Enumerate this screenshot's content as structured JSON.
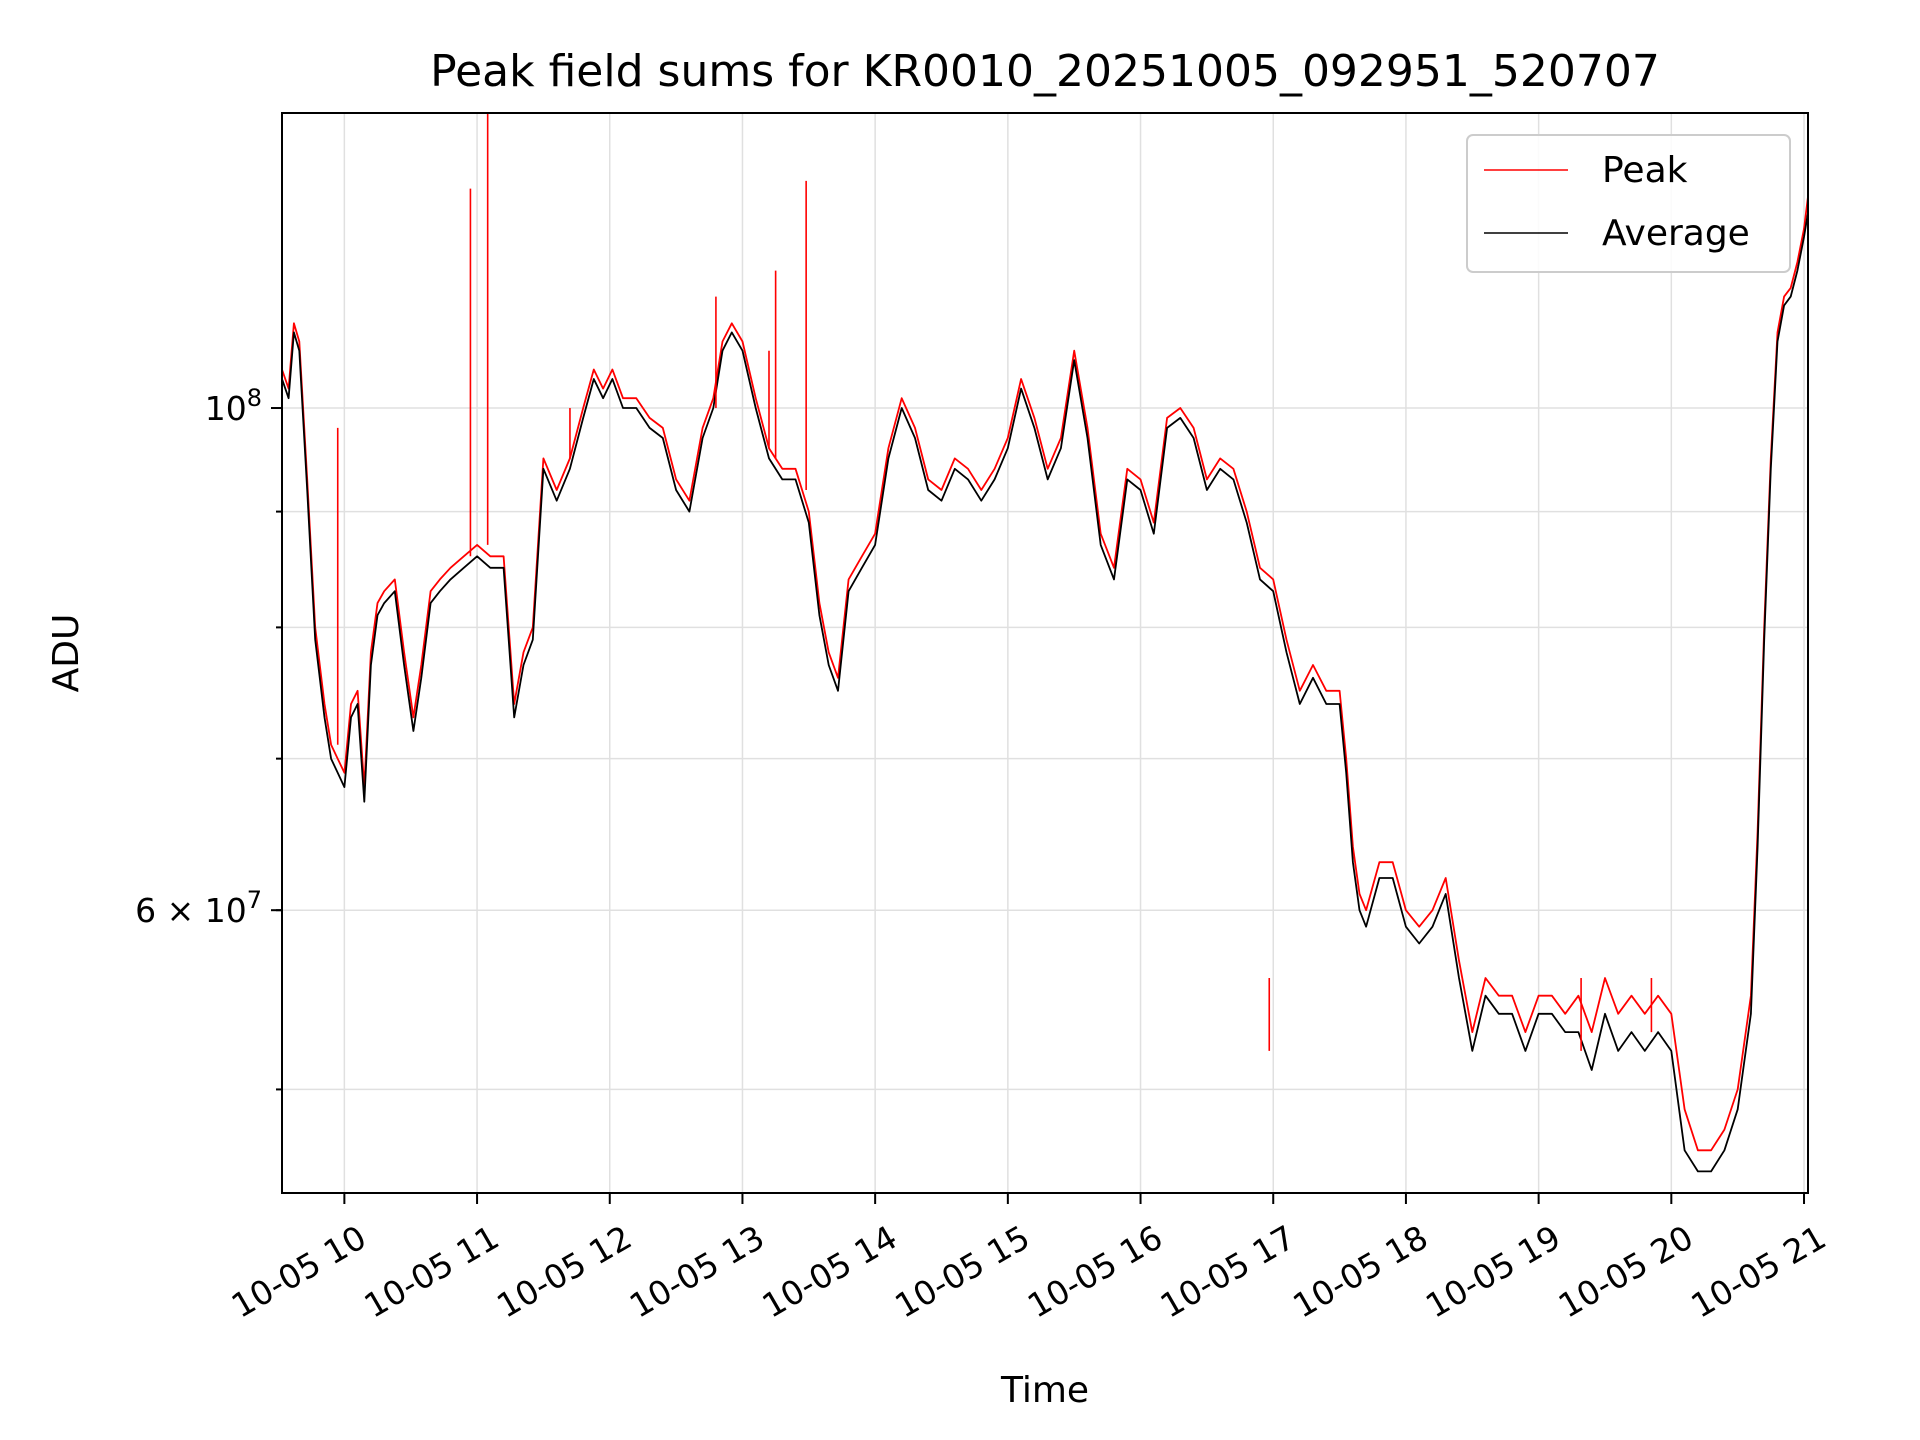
{
  "chart_data": {
    "type": "line",
    "title": "Peak field sums for KR0010_20251005_092951_520707",
    "xlabel": "Time",
    "ylabel": "ADU",
    "yscale": "log",
    "ylim": [
      45000000,
      135000000
    ],
    "xlim_hours": [
      9.53,
      21.03
    ],
    "legend_position": "upper right",
    "grid": true,
    "x_tick_hours": [
      10,
      11,
      12,
      13,
      14,
      15,
      16,
      17,
      18,
      19,
      20,
      21
    ],
    "x_tick_labels": [
      "10-05 10",
      "10-05 11",
      "10-05 12",
      "10-05 13",
      "10-05 14",
      "10-05 15",
      "10-05 16",
      "10-05 17",
      "10-05 18",
      "10-05 19",
      "10-05 20",
      "10-05 21"
    ],
    "y_major_ticks": [
      {
        "value": 60000000,
        "mantissa": "6",
        "exponent": "7",
        "label": "6 × 10⁷"
      },
      {
        "value": 100000000,
        "mantissa": "",
        "exponent": "8",
        "label": "10⁸"
      }
    ],
    "y_minor_ticks": [
      50000000,
      60000000,
      70000000,
      80000000,
      90000000
    ],
    "series": [
      {
        "name": "Peak",
        "color": "#ff0000",
        "x_hours": [
          9.53,
          9.58,
          9.62,
          9.66,
          9.72,
          9.78,
          9.85,
          9.9,
          9.95,
          10.0,
          10.05,
          10.1,
          10.15,
          10.2,
          10.25,
          10.3,
          10.38,
          10.45,
          10.52,
          10.58,
          10.65,
          10.72,
          10.8,
          10.9,
          11.0,
          11.1,
          11.2,
          11.28,
          11.35,
          11.42,
          11.5,
          11.6,
          11.7,
          11.8,
          11.88,
          11.95,
          12.02,
          12.1,
          12.2,
          12.3,
          12.4,
          12.5,
          12.6,
          12.7,
          12.78,
          12.85,
          12.92,
          13.0,
          13.1,
          13.2,
          13.3,
          13.4,
          13.5,
          13.58,
          13.65,
          13.72,
          13.8,
          13.9,
          14.0,
          14.1,
          14.2,
          14.3,
          14.4,
          14.5,
          14.6,
          14.7,
          14.8,
          14.9,
          15.0,
          15.1,
          15.2,
          15.3,
          15.4,
          15.5,
          15.6,
          15.7,
          15.8,
          15.9,
          16.0,
          16.1,
          16.2,
          16.3,
          16.4,
          16.5,
          16.6,
          16.7,
          16.8,
          16.9,
          17.0,
          17.1,
          17.2,
          17.3,
          17.4,
          17.5,
          17.55,
          17.6,
          17.65,
          17.7,
          17.8,
          17.9,
          18.0,
          18.1,
          18.2,
          18.3,
          18.4,
          18.5,
          18.6,
          18.7,
          18.8,
          18.9,
          19.0,
          19.1,
          19.2,
          19.3,
          19.4,
          19.5,
          19.6,
          19.7,
          19.8,
          19.9,
          20.0,
          20.1,
          20.2,
          20.3,
          20.4,
          20.5,
          20.6,
          20.65,
          20.7,
          20.75,
          20.8,
          20.85,
          20.9,
          20.95,
          21.0,
          21.03
        ],
        "values": [
          104000000,
          102000000,
          109000000,
          107000000,
          93000000,
          80000000,
          74000000,
          71000000,
          70000000,
          69000000,
          74000000,
          75000000,
          68000000,
          78000000,
          82000000,
          83000000,
          84000000,
          78000000,
          73000000,
          77000000,
          83000000,
          84000000,
          85000000,
          86000000,
          87000000,
          86000000,
          86000000,
          74000000,
          78000000,
          80000000,
          95000000,
          92000000,
          95000000,
          100000000,
          104000000,
          102000000,
          104000000,
          101000000,
          101000000,
          99000000,
          98000000,
          93000000,
          91000000,
          98000000,
          101000000,
          107000000,
          109000000,
          107000000,
          101000000,
          96000000,
          94000000,
          94000000,
          90000000,
          82000000,
          78000000,
          76000000,
          84000000,
          86000000,
          88000000,
          96000000,
          101000000,
          98000000,
          93000000,
          92000000,
          95000000,
          94000000,
          92000000,
          94000000,
          97000000,
          103000000,
          99000000,
          94000000,
          97000000,
          106000000,
          98000000,
          88000000,
          85000000,
          94000000,
          93000000,
          89000000,
          99000000,
          100000000,
          98000000,
          93000000,
          95000000,
          94000000,
          90000000,
          85000000,
          84000000,
          79000000,
          75000000,
          77000000,
          75000000,
          75000000,
          70000000,
          64000000,
          61000000,
          60000000,
          63000000,
          63000000,
          60000000,
          59000000,
          60000000,
          62000000,
          57000000,
          53000000,
          56000000,
          55000000,
          55000000,
          53000000,
          55000000,
          55000000,
          54000000,
          55000000,
          53000000,
          56000000,
          54000000,
          55000000,
          54000000,
          55000000,
          54000000,
          49000000,
          47000000,
          47000000,
          48000000,
          50000000,
          55000000,
          65000000,
          80000000,
          95000000,
          108000000,
          112000000,
          113000000,
          116000000,
          120000000,
          124000000
        ]
      },
      {
        "name": "Average",
        "color": "#000000",
        "x_hours": [
          9.53,
          9.58,
          9.62,
          9.66,
          9.72,
          9.78,
          9.85,
          9.9,
          9.95,
          10.0,
          10.05,
          10.1,
          10.15,
          10.2,
          10.25,
          10.3,
          10.38,
          10.45,
          10.52,
          10.58,
          10.65,
          10.72,
          10.8,
          10.9,
          11.0,
          11.1,
          11.2,
          11.28,
          11.35,
          11.42,
          11.5,
          11.6,
          11.7,
          11.8,
          11.88,
          11.95,
          12.02,
          12.1,
          12.2,
          12.3,
          12.4,
          12.5,
          12.6,
          12.7,
          12.78,
          12.85,
          12.92,
          13.0,
          13.1,
          13.2,
          13.3,
          13.4,
          13.5,
          13.58,
          13.65,
          13.72,
          13.8,
          13.9,
          14.0,
          14.1,
          14.2,
          14.3,
          14.4,
          14.5,
          14.6,
          14.7,
          14.8,
          14.9,
          15.0,
          15.1,
          15.2,
          15.3,
          15.4,
          15.5,
          15.6,
          15.7,
          15.8,
          15.9,
          16.0,
          16.1,
          16.2,
          16.3,
          16.4,
          16.5,
          16.6,
          16.7,
          16.8,
          16.9,
          17.0,
          17.1,
          17.2,
          17.3,
          17.4,
          17.5,
          17.55,
          17.6,
          17.65,
          17.7,
          17.8,
          17.9,
          18.0,
          18.1,
          18.2,
          18.3,
          18.4,
          18.5,
          18.6,
          18.7,
          18.8,
          18.9,
          19.0,
          19.1,
          19.2,
          19.3,
          19.4,
          19.5,
          19.6,
          19.7,
          19.8,
          19.9,
          20.0,
          20.1,
          20.2,
          20.3,
          20.4,
          20.5,
          20.6,
          20.65,
          20.7,
          20.75,
          20.8,
          20.85,
          20.9,
          20.95,
          21.0,
          21.03
        ],
        "values": [
          103000000,
          101000000,
          108000000,
          106000000,
          92000000,
          79000000,
          73000000,
          70000000,
          69000000,
          68000000,
          73000000,
          74000000,
          67000000,
          77000000,
          81000000,
          82000000,
          83000000,
          77000000,
          72000000,
          76000000,
          82000000,
          83000000,
          84000000,
          85000000,
          86000000,
          85000000,
          85000000,
          73000000,
          77000000,
          79000000,
          94000000,
          91000000,
          94000000,
          99000000,
          103000000,
          101000000,
          103000000,
          100000000,
          100000000,
          98000000,
          97000000,
          92000000,
          90000000,
          97000000,
          100000000,
          106000000,
          108000000,
          106000000,
          100000000,
          95000000,
          93000000,
          93000000,
          89000000,
          81000000,
          77000000,
          75000000,
          83000000,
          85000000,
          87000000,
          95000000,
          100000000,
          97000000,
          92000000,
          91000000,
          94000000,
          93000000,
          91000000,
          93000000,
          96000000,
          102000000,
          98000000,
          93000000,
          96000000,
          105000000,
          97000000,
          87000000,
          84000000,
          93000000,
          92000000,
          88000000,
          98000000,
          99000000,
          97000000,
          92000000,
          94000000,
          93000000,
          89000000,
          84000000,
          83000000,
          78000000,
          74000000,
          76000000,
          74000000,
          74000000,
          69000000,
          63000000,
          60000000,
          59000000,
          62000000,
          62000000,
          59000000,
          58000000,
          59000000,
          61000000,
          56000000,
          52000000,
          55000000,
          54000000,
          54000000,
          52000000,
          54000000,
          54000000,
          53000000,
          53000000,
          51000000,
          54000000,
          52000000,
          53000000,
          52000000,
          53000000,
          52000000,
          47000000,
          46000000,
          46000000,
          47000000,
          49000000,
          54000000,
          64000000,
          79000000,
          94000000,
          107000000,
          111000000,
          112000000,
          115000000,
          119000000,
          122000000
        ]
      }
    ],
    "spikes": [
      {
        "x_hour": 9.95,
        "base": 71000000,
        "value": 98000000
      },
      {
        "x_hour": 10.95,
        "base": 86000000,
        "value": 125000000
      },
      {
        "x_hour": 11.08,
        "base": 87000000,
        "value": 135000000
      },
      {
        "x_hour": 11.7,
        "base": 95000000,
        "value": 100000000
      },
      {
        "x_hour": 12.8,
        "base": 100000000,
        "value": 112000000
      },
      {
        "x_hour": 13.2,
        "base": 96000000,
        "value": 106000000
      },
      {
        "x_hour": 13.25,
        "base": 95000000,
        "value": 115000000
      },
      {
        "x_hour": 13.48,
        "base": 92000000,
        "value": 126000000
      },
      {
        "x_hour": 16.97,
        "base": 52000000,
        "value": 56000000
      },
      {
        "x_hour": 19.32,
        "base": 52000000,
        "value": 56000000
      },
      {
        "x_hour": 19.85,
        "base": 53000000,
        "value": 56000000
      }
    ]
  }
}
